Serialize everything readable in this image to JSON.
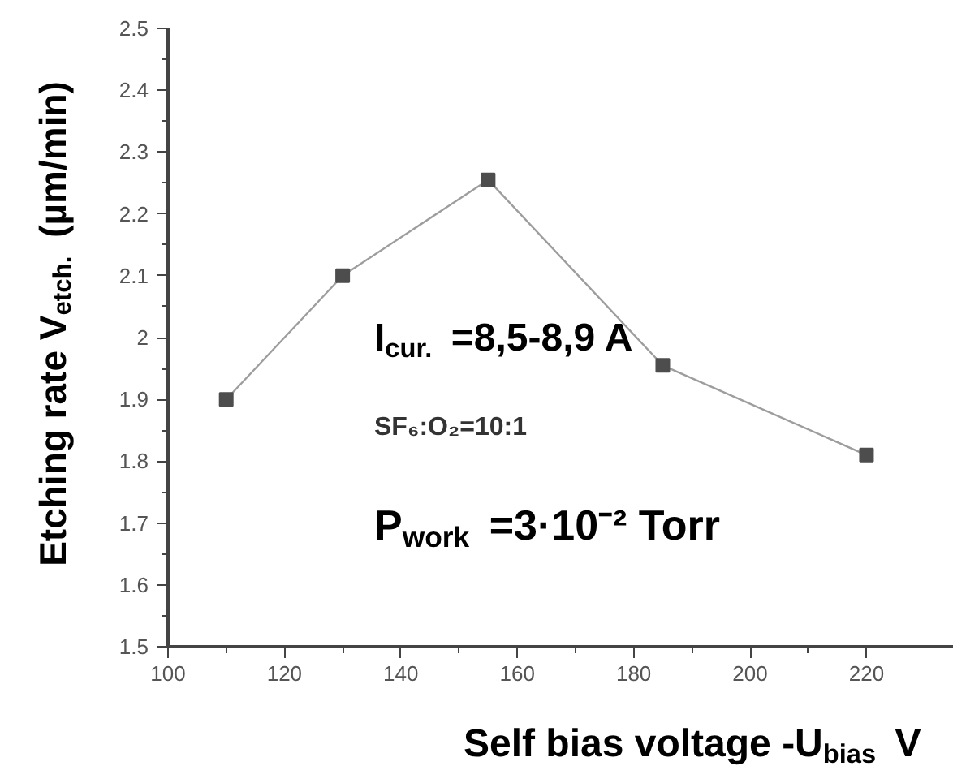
{
  "chart_data": {
    "type": "line",
    "xlabel": "Self bias voltage -U$_{bias}$ V",
    "ylabel": "Etching rate V$_{etch.}$ (µm/min)",
    "x": [
      110,
      130,
      155,
      185,
      220
    ],
    "series": [
      {
        "color": "#4d4d4d",
        "values": [
          1.9,
          2.1,
          2.255,
          1.955,
          1.81
        ]
      }
    ],
    "xlim": [
      100,
      235
    ],
    "xticks": [
      100,
      120,
      140,
      160,
      180,
      200,
      220
    ],
    "ylim": [
      1.5,
      2.5
    ],
    "yticks": [
      1.5,
      1.6,
      1.7,
      1.8,
      1.9,
      2.0,
      2.1,
      2.2,
      2.3,
      2.4,
      2.5
    ],
    "marker": "square",
    "grid": false,
    "annotations": [
      "I$_{cur.}$ =8,5-8,9 A",
      "SF₆:O₂=10:1",
      "P$_{work}$ =3·10⁻² Torr"
    ]
  }
}
